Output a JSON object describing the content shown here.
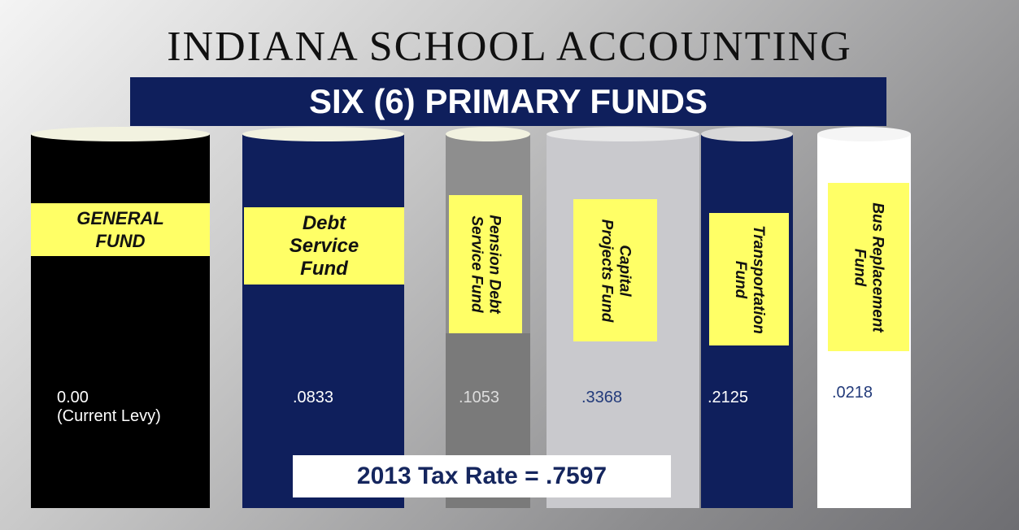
{
  "title": "INDIANA SCHOOL ACCOUNTING",
  "banner": "SIX (6) PRIMARY FUNDS",
  "funds": [
    {
      "label": [
        "GENERAL",
        "FUND"
      ],
      "rate": "0.00",
      "note": "(Current Levy)"
    },
    {
      "label": [
        "Debt",
        "Service",
        "Fund"
      ],
      "rate": ".0833"
    },
    {
      "label": [
        "Pension Debt",
        "Service Fund"
      ],
      "rate": ".1053"
    },
    {
      "label": [
        "Capital",
        "Projects Fund"
      ],
      "rate": ".3368"
    },
    {
      "label": [
        "Transportation",
        "Fund"
      ],
      "rate": ".2125"
    },
    {
      "label": [
        "Bus Replacement",
        "Fund"
      ],
      "rate": ".0218"
    }
  ],
  "footer": "2013 Tax Rate = .7597"
}
